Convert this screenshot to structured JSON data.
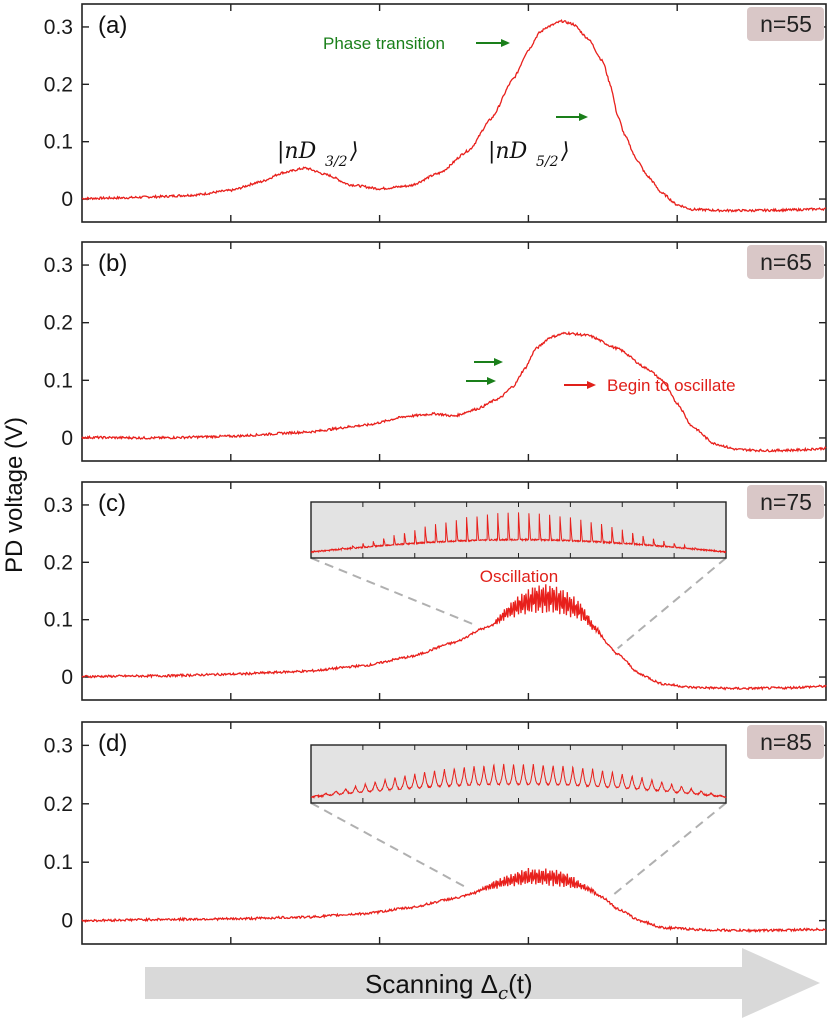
{
  "chart_data": [
    {
      "type": "line",
      "panel_label": "(a)",
      "badge": "n=55",
      "ylim": [
        -0.04,
        0.34
      ],
      "yticks": [
        0,
        0.1,
        0.2,
        0.3
      ],
      "yticklabels": [
        "0",
        "0.1",
        "0.2",
        "0.3"
      ],
      "series": [
        {
          "color": "#e8201c",
          "points": [
            [
              0,
              0.001
            ],
            [
              0.05,
              0.002
            ],
            [
              0.1,
              0.004
            ],
            [
              0.15,
              0.007
            ],
            [
              0.2,
              0.015
            ],
            [
              0.24,
              0.03
            ],
            [
              0.27,
              0.046
            ],
            [
              0.3,
              0.054
            ],
            [
              0.33,
              0.042
            ],
            [
              0.36,
              0.025
            ],
            [
              0.4,
              0.018
            ],
            [
              0.44,
              0.023
            ],
            [
              0.48,
              0.045
            ],
            [
              0.52,
              0.085
            ],
            [
              0.55,
              0.14
            ],
            [
              0.58,
              0.21
            ],
            [
              0.6,
              0.26
            ],
            [
              0.615,
              0.29
            ],
            [
              0.625,
              0.3
            ],
            [
              0.645,
              0.31
            ],
            [
              0.66,
              0.305
            ],
            [
              0.68,
              0.28
            ],
            [
              0.7,
              0.24
            ],
            [
              0.71,
              0.2
            ],
            [
              0.72,
              0.145
            ],
            [
              0.73,
              0.11
            ],
            [
              0.745,
              0.07
            ],
            [
              0.76,
              0.04
            ],
            [
              0.78,
              0.01
            ],
            [
              0.8,
              -0.01
            ],
            [
              0.82,
              -0.018
            ],
            [
              0.86,
              -0.02
            ],
            [
              0.9,
              -0.02
            ],
            [
              0.95,
              -0.019
            ],
            [
              1,
              -0.017
            ]
          ]
        }
      ],
      "annotations": [
        {
          "text": "Phase transition",
          "color": "green"
        },
        {
          "text": "|nD3/2⟩"
        },
        {
          "text": "|nD5/2⟩"
        }
      ]
    },
    {
      "type": "line",
      "panel_label": "(b)",
      "badge": "n=65",
      "ylim": [
        -0.04,
        0.34
      ],
      "yticks": [
        0,
        0.1,
        0.2,
        0.3
      ],
      "yticklabels": [
        "0",
        "0.1",
        "0.2",
        "0.3"
      ],
      "series": [
        {
          "color": "#e8201c",
          "points": [
            [
              0,
              0.001
            ],
            [
              0.1,
              0.0
            ],
            [
              0.2,
              0.003
            ],
            [
              0.3,
              0.01
            ],
            [
              0.38,
              0.022
            ],
            [
              0.44,
              0.038
            ],
            [
              0.475,
              0.042
            ],
            [
              0.5,
              0.038
            ],
            [
              0.53,
              0.05
            ],
            [
              0.56,
              0.068
            ],
            [
              0.58,
              0.09
            ],
            [
              0.595,
              0.12
            ],
            [
              0.61,
              0.155
            ],
            [
              0.63,
              0.175
            ],
            [
              0.65,
              0.182
            ],
            [
              0.68,
              0.178
            ],
            [
              0.72,
              0.155
            ],
            [
              0.76,
              0.12
            ],
            [
              0.78,
              0.1
            ],
            [
              0.8,
              0.06
            ],
            [
              0.82,
              0.02
            ],
            [
              0.85,
              -0.01
            ],
            [
              0.88,
              -0.02
            ],
            [
              0.92,
              -0.022
            ],
            [
              0.96,
              -0.021
            ],
            [
              1,
              -0.018
            ]
          ]
        }
      ],
      "annotations": [
        {
          "text": "Begin to oscillate",
          "color": "red"
        }
      ]
    },
    {
      "type": "line",
      "panel_label": "(c)",
      "badge": "n=75",
      "ylim": [
        -0.04,
        0.34
      ],
      "yticks": [
        0,
        0.1,
        0.2,
        0.3
      ],
      "yticklabels": [
        "0",
        "0.1",
        "0.2",
        "0.3"
      ],
      "series": [
        {
          "color": "#e8201c",
          "points": [
            [
              0,
              0.001
            ],
            [
              0.1,
              0.002
            ],
            [
              0.2,
              0.005
            ],
            [
              0.3,
              0.01
            ],
            [
              0.38,
              0.02
            ],
            [
              0.44,
              0.035
            ],
            [
              0.5,
              0.06
            ],
            [
              0.54,
              0.085
            ],
            [
              0.58,
              0.105
            ],
            [
              0.61,
              0.113
            ],
            [
              0.64,
              0.11
            ],
            [
              0.67,
              0.1
            ],
            [
              0.69,
              0.08
            ],
            [
              0.72,
              0.04
            ],
            [
              0.75,
              0.005
            ],
            [
              0.78,
              -0.012
            ],
            [
              0.82,
              -0.018
            ],
            [
              0.88,
              -0.02
            ],
            [
              0.94,
              -0.019
            ],
            [
              1,
              -0.016
            ]
          ]
        }
      ],
      "oscillation_range": [
        0.55,
        0.7
      ],
      "oscillation_amplitude": 0.05,
      "annotations": [
        {
          "text": "Oscillation",
          "color": "red"
        }
      ]
    },
    {
      "type": "line",
      "panel_label": "(d)",
      "badge": "n=85",
      "ylim": [
        -0.04,
        0.34
      ],
      "yticks": [
        0,
        0.1,
        0.2,
        0.3
      ],
      "yticklabels": [
        "0",
        "0.1",
        "0.2",
        "0.3"
      ],
      "series": [
        {
          "color": "#e8201c",
          "points": [
            [
              0,
              0.0
            ],
            [
              0.1,
              0.002
            ],
            [
              0.2,
              0.003
            ],
            [
              0.3,
              0.006
            ],
            [
              0.38,
              0.012
            ],
            [
              0.44,
              0.022
            ],
            [
              0.5,
              0.038
            ],
            [
              0.55,
              0.055
            ],
            [
              0.6,
              0.062
            ],
            [
              0.64,
              0.06
            ],
            [
              0.68,
              0.05
            ],
            [
              0.7,
              0.04
            ],
            [
              0.72,
              0.02
            ],
            [
              0.75,
              0.0
            ],
            [
              0.78,
              -0.012
            ],
            [
              0.84,
              -0.016
            ],
            [
              0.9,
              -0.017
            ],
            [
              1,
              -0.015
            ]
          ]
        }
      ],
      "oscillation_range": [
        0.53,
        0.7
      ],
      "oscillation_amplitude": 0.028
    }
  ],
  "ylabel": "PD voltage (V)",
  "xlabel": "Scanning Δ_c(t)"
}
